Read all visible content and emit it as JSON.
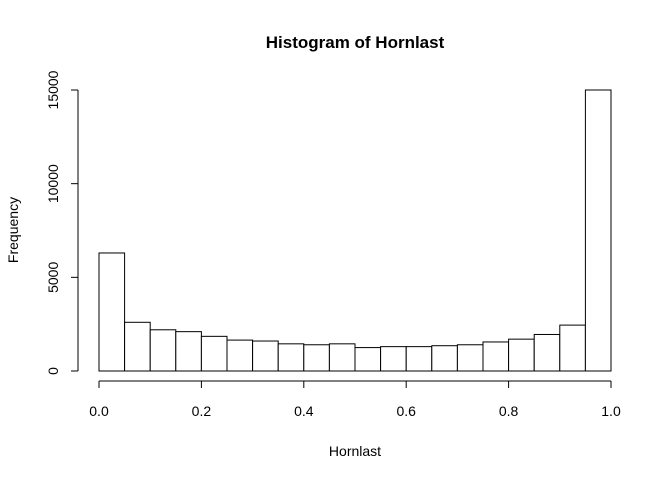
{
  "chart_data": {
    "type": "bar",
    "title": "Histogram of Hornlast",
    "xlabel": "Hornlast",
    "ylabel": "Frequency",
    "xlim": [
      0,
      1
    ],
    "ylim": [
      0,
      15000
    ],
    "bin_width": 0.05,
    "bins": [
      {
        "x0": 0.0,
        "x1": 0.05,
        "count": 6300
      },
      {
        "x0": 0.05,
        "x1": 0.1,
        "count": 2600
      },
      {
        "x0": 0.1,
        "x1": 0.15,
        "count": 2200
      },
      {
        "x0": 0.15,
        "x1": 0.2,
        "count": 2100
      },
      {
        "x0": 0.2,
        "x1": 0.25,
        "count": 1850
      },
      {
        "x0": 0.25,
        "x1": 0.3,
        "count": 1650
      },
      {
        "x0": 0.3,
        "x1": 0.35,
        "count": 1600
      },
      {
        "x0": 0.35,
        "x1": 0.4,
        "count": 1450
      },
      {
        "x0": 0.4,
        "x1": 0.45,
        "count": 1400
      },
      {
        "x0": 0.45,
        "x1": 0.5,
        "count": 1450
      },
      {
        "x0": 0.5,
        "x1": 0.55,
        "count": 1250
      },
      {
        "x0": 0.55,
        "x1": 0.6,
        "count": 1300
      },
      {
        "x0": 0.6,
        "x1": 0.65,
        "count": 1300
      },
      {
        "x0": 0.65,
        "x1": 0.7,
        "count": 1350
      },
      {
        "x0": 0.7,
        "x1": 0.75,
        "count": 1400
      },
      {
        "x0": 0.75,
        "x1": 0.8,
        "count": 1550
      },
      {
        "x0": 0.8,
        "x1": 0.85,
        "count": 1700
      },
      {
        "x0": 0.85,
        "x1": 0.9,
        "count": 1950
      },
      {
        "x0": 0.9,
        "x1": 0.95,
        "count": 2450
      },
      {
        "x0": 0.95,
        "x1": 1.0,
        "count": 15000
      }
    ],
    "x_ticks": [
      {
        "value": 0.0,
        "label": "0.0"
      },
      {
        "value": 0.2,
        "label": "0.2"
      },
      {
        "value": 0.4,
        "label": "0.4"
      },
      {
        "value": 0.6,
        "label": "0.6"
      },
      {
        "value": 0.8,
        "label": "0.8"
      },
      {
        "value": 1.0,
        "label": "1.0"
      }
    ],
    "y_ticks": [
      {
        "value": 0,
        "label": "0"
      },
      {
        "value": 5000,
        "label": "5000"
      },
      {
        "value": 10000,
        "label": "10000"
      },
      {
        "value": 15000,
        "label": "15000"
      }
    ],
    "grid": false,
    "bar_fill": "#ffffff",
    "bar_stroke": "#000000"
  }
}
